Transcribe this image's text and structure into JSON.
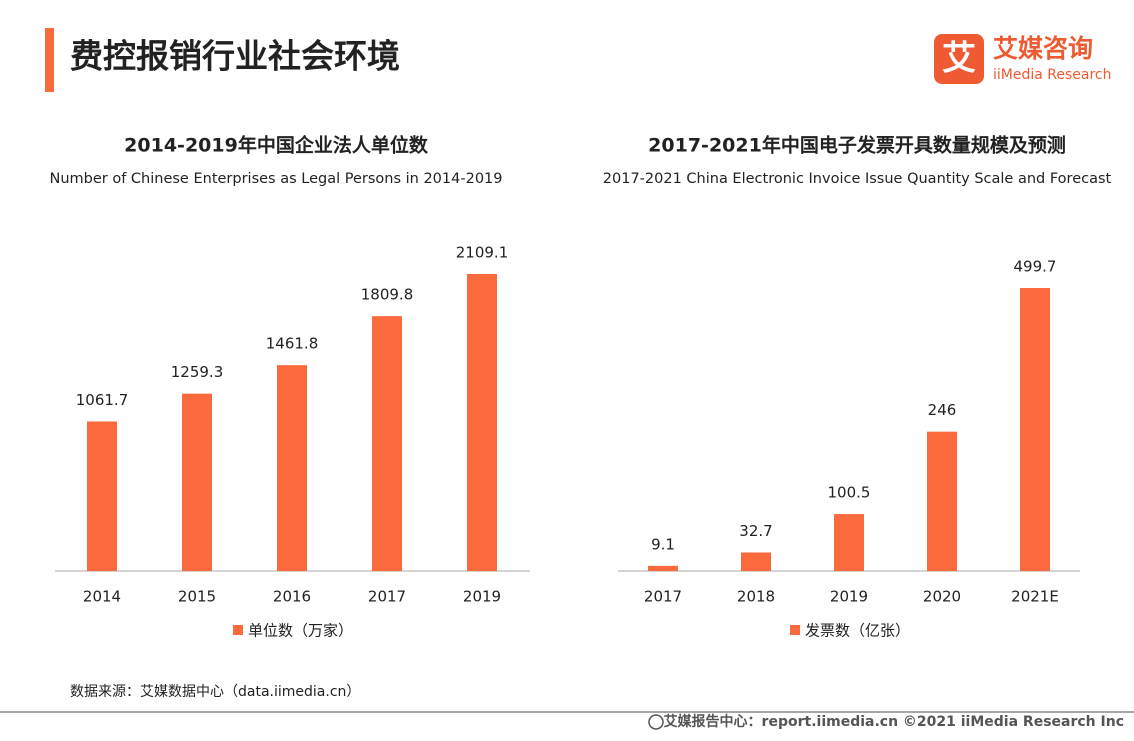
{
  "header": {
    "title": "费控报销行业社会环境",
    "logo_mark": "艾",
    "logo_name": "艾媒咨询",
    "logo_en": "iiMedia Research"
  },
  "chart_data": [
    {
      "type": "bar",
      "title": "2014-2019年中国企业法人单位数",
      "subtitle": "Number of Chinese Enterprises as Legal Persons in 2014-2019",
      "categories": [
        "2014",
        "2015",
        "2016",
        "2017",
        "2019"
      ],
      "series": [
        {
          "name": "单位数（万家）",
          "color": "#fb6a3d",
          "values": [
            1061.7,
            1259.3,
            1461.8,
            1809.8,
            2109.1
          ]
        }
      ]
    },
    {
      "type": "bar",
      "title": "2017-2021年中国电子发票开具数量规模及预测",
      "subtitle": "2017-2021 China Electronic Invoice Issue Quantity Scale and Forecast",
      "categories": [
        "2017",
        "2018",
        "2019",
        "2020",
        "2021E"
      ],
      "series": [
        {
          "name": "发票数（亿张）",
          "color": "#fb6a3d",
          "values": [
            9.1,
            32.7,
            100.5,
            246,
            499.7
          ]
        }
      ]
    }
  ],
  "source": "数据来源：艾媒数据中心（data.iimedia.cn）",
  "footer": "艾媒报告中心：report.iimedia.cn   ©2021  iiMedia Research  Inc"
}
